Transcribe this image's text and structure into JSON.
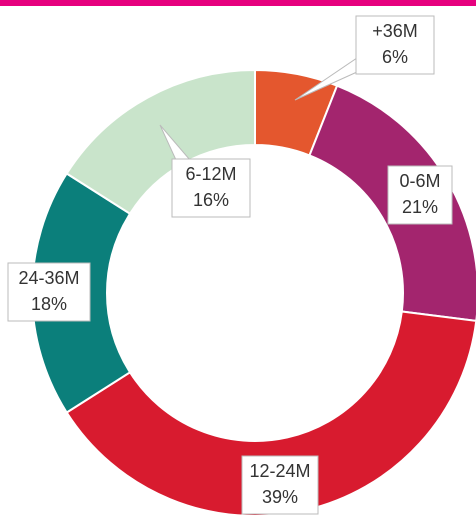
{
  "chart_data": {
    "type": "donut",
    "categories": [
      "+36M",
      "0-6M",
      "12-24M",
      "24-36M",
      "6-12M"
    ],
    "values": [
      6,
      21,
      39,
      18,
      16
    ],
    "value_labels": [
      "6%",
      "21%",
      "39%",
      "18%",
      "16%"
    ],
    "colors": [
      "#e4572e",
      "#a3256e",
      "#d81b2f",
      "#0b7f7b",
      "#c9e4cb"
    ]
  }
}
